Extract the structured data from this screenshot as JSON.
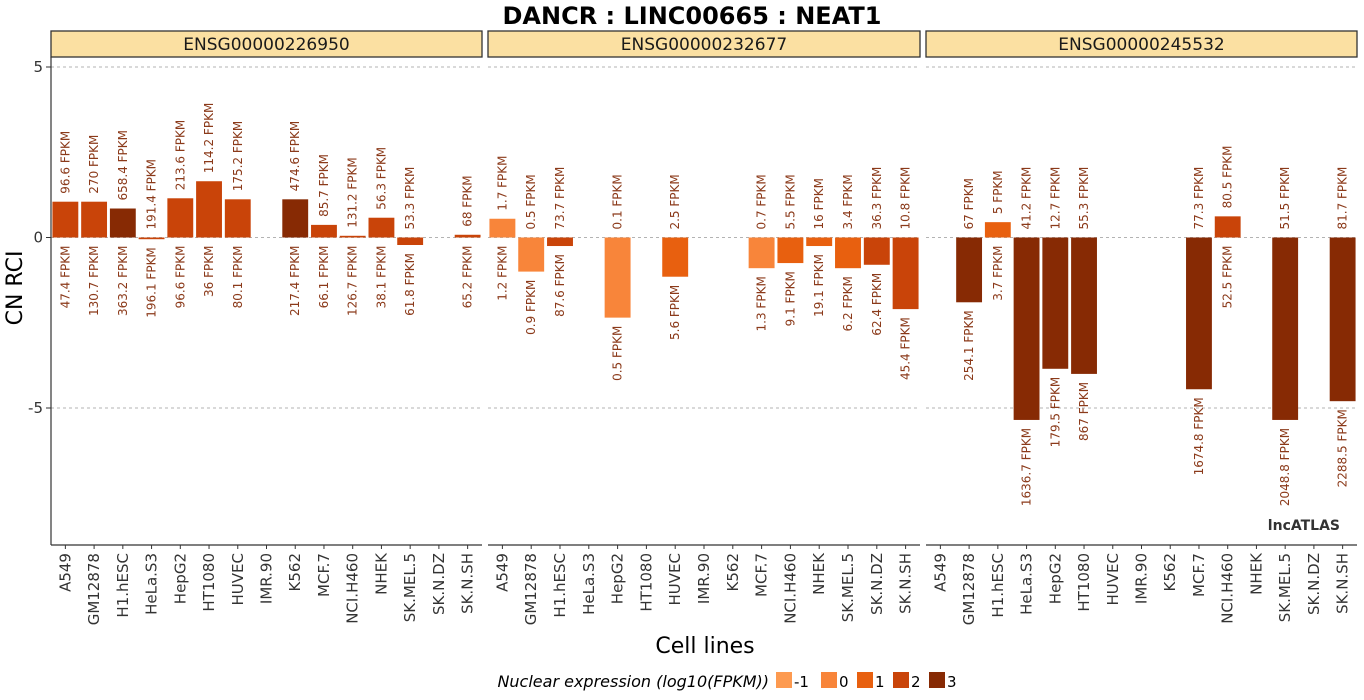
{
  "colors": {
    "level_-1": "#fd9a50",
    "level_0": "#f8853a",
    "level_1": "#e8600f",
    "level_2": "#c94409",
    "level_3": "#872a04",
    "facet_fill": "#fbe0a2",
    "gridline": "#9a9a9a"
  },
  "chart_data": {
    "type": "bar",
    "title": "DANCR : LINC00665 : NEAT1",
    "xlabel": "Cell lines",
    "ylabel": "CN RCI",
    "ylim": [
      -9,
      5.2
    ],
    "yticks": [
      5,
      0,
      -5
    ],
    "yticklabels": [
      "5",
      "0",
      "-5"
    ],
    "grid": true,
    "watermark": "lncATLAS",
    "legend": {
      "title": "Nuclear expression (log10(FPKM))",
      "position": "bottom",
      "levels": [
        {
          "label": "-1",
          "color": "#fd9a50"
        },
        {
          "label": "0",
          "color": "#f8853a"
        },
        {
          "label": "1",
          "color": "#e8600f"
        },
        {
          "label": "2",
          "color": "#c94409"
        },
        {
          "label": "3",
          "color": "#872a04"
        }
      ]
    },
    "categories": [
      "A549",
      "GM12878",
      "H1.hESC",
      "HeLa.S3",
      "HepG2",
      "HT1080",
      "HUVEC",
      "IMR.90",
      "K562",
      "MCF.7",
      "NCI.H460",
      "NHEK",
      "SK.MEL.5",
      "SK.N.DZ",
      "SK.N.SH"
    ],
    "facets": [
      {
        "name": "ENSG00000226950",
        "values": [
          1.05,
          1.05,
          0.85,
          -0.05,
          1.15,
          1.65,
          1.12,
          null,
          1.12,
          0.37,
          0.05,
          0.58,
          -0.22,
          null,
          0.08
        ],
        "levels": [
          2,
          2,
          3,
          2,
          2,
          2,
          2,
          null,
          3,
          2,
          2,
          2,
          2,
          null,
          2
        ],
        "cyto_labels": [
          "96.6 FPKM",
          "270 FPKM",
          "658.4 FPKM",
          "191.4 FPKM",
          "213.6 FPKM",
          "114.2 FPKM",
          "175.2 FPKM",
          "",
          "474.6 FPKM",
          "85.7 FPKM",
          "131.2 FPKM",
          "56.3 FPKM",
          "53.3 FPKM",
          "",
          "68 FPKM"
        ],
        "nuc_labels": [
          "47.4 FPKM",
          "130.7 FPKM",
          "363.2 FPKM",
          "196.1 FPKM",
          "96.6 FPKM",
          "36 FPKM",
          "80.1 FPKM",
          "",
          "217.4 FPKM",
          "66.1 FPKM",
          "126.7 FPKM",
          "38.1 FPKM",
          "61.8 FPKM",
          "",
          "65.2 FPKM"
        ]
      },
      {
        "name": "ENSG00000232677",
        "values": [
          0.55,
          -1.0,
          -0.25,
          null,
          -2.35,
          null,
          -1.15,
          null,
          null,
          -0.9,
          -0.75,
          -0.25,
          -0.9,
          -0.8,
          -2.1
        ],
        "levels": [
          0,
          0,
          2,
          null,
          0,
          null,
          1,
          null,
          null,
          0,
          1,
          1,
          1,
          2,
          2
        ],
        "cyto_labels": [
          "1.7 FPKM",
          "0.5 FPKM",
          "73.7 FPKM",
          "",
          "0.1 FPKM",
          "",
          "2.5 FPKM",
          "",
          "",
          "0.7 FPKM",
          "5.5 FPKM",
          "16 FPKM",
          "3.4 FPKM",
          "36.3 FPKM",
          "10.8 FPKM"
        ],
        "nuc_labels": [
          "1.2 FPKM",
          "0.9 FPKM",
          "87.6 FPKM",
          "",
          "0.5 FPKM",
          "",
          "5.6 FPKM",
          "",
          "",
          "1.3 FPKM",
          "9.1 FPKM",
          "19.1 FPKM",
          "6.2 FPKM",
          "62.4 FPKM",
          "45.4 FPKM"
        ]
      },
      {
        "name": "ENSG00000245532",
        "values": [
          null,
          -1.9,
          0.45,
          -5.35,
          -3.85,
          -4.0,
          null,
          null,
          null,
          -4.45,
          0.62,
          null,
          -5.35,
          null,
          -4.8
        ],
        "levels": [
          null,
          3,
          1,
          3,
          3,
          3,
          null,
          null,
          null,
          3,
          2,
          null,
          3,
          null,
          3
        ],
        "cyto_labels": [
          "",
          "67 FPKM",
          "5 FPKM",
          "41.2 FPKM",
          "12.7 FPKM",
          "55.3 FPKM",
          "",
          "",
          "",
          "77.3 FPKM",
          "80.5 FPKM",
          "",
          "51.5 FPKM",
          "",
          "81.7 FPKM"
        ],
        "nuc_labels": [
          "",
          "254.1 FPKM",
          "3.7 FPKM",
          "1636.7 FPKM",
          "179.5 FPKM",
          "867 FPKM",
          "",
          "",
          "",
          "1674.8 FPKM",
          "52.5 FPKM",
          "",
          "2048.8 FPKM",
          "",
          "2288.5 FPKM"
        ]
      }
    ]
  }
}
